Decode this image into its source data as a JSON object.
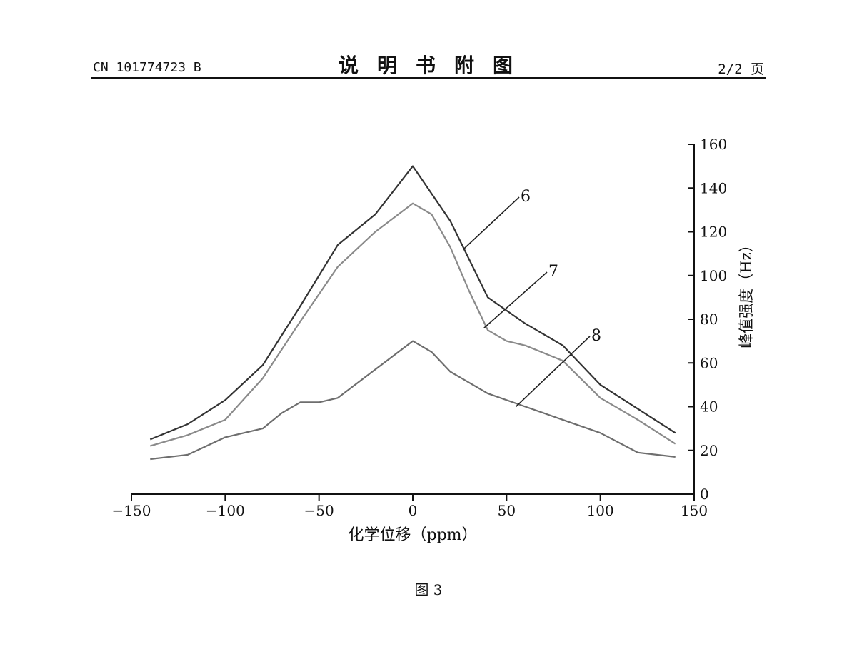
{
  "header": {
    "patent_number": "CN 101774723 B",
    "section_title": "说明书附图",
    "page_indicator": "2/2 页"
  },
  "caption": "图 3",
  "chart_data": {
    "type": "line",
    "title": "",
    "xlabel": "化学位移（ppm）",
    "ylabel": "峰值强度（Hz）",
    "xlim": [
      -150,
      150
    ],
    "ylim": [
      0,
      160
    ],
    "xticks": [
      -150,
      -100,
      -50,
      0,
      50,
      100,
      150
    ],
    "yticks": [
      0,
      20,
      40,
      60,
      80,
      100,
      120,
      140,
      160
    ],
    "xtick_labels": [
      "−150",
      "−100",
      "−50",
      "0",
      "50",
      "100",
      "150"
    ],
    "ytick_labels": [
      "0",
      "20",
      "40",
      "60",
      "80",
      "100",
      "120",
      "140",
      "160"
    ],
    "y_axis_side": "right",
    "grid": false,
    "series": [
      {
        "name": "6",
        "color": "#333333",
        "x": [
          -140,
          -120,
          -100,
          -80,
          -60,
          -40,
          -20,
          0,
          20,
          40,
          60,
          80,
          100,
          120,
          140
        ],
        "y": [
          25,
          32,
          43,
          59,
          86,
          114,
          128,
          150,
          125,
          90,
          78,
          68,
          50,
          39,
          28
        ]
      },
      {
        "name": "7",
        "color": "#8a8a8a",
        "x": [
          -140,
          -120,
          -100,
          -80,
          -60,
          -40,
          -20,
          0,
          10,
          20,
          30,
          40,
          50,
          60,
          80,
          100,
          120,
          140
        ],
        "y": [
          22,
          27,
          34,
          53,
          79,
          104,
          120,
          133,
          128,
          113,
          93,
          75,
          70,
          68,
          61,
          44,
          34,
          23
        ],
        "label_anchor": [
          38,
          76
        ]
      },
      {
        "name": "8",
        "color": "#6e6e6e",
        "x": [
          -140,
          -120,
          -100,
          -80,
          -70,
          -60,
          -50,
          -40,
          -20,
          0,
          10,
          20,
          40,
          60,
          80,
          100,
          120,
          140
        ],
        "y": [
          16,
          18,
          26,
          30,
          37,
          42,
          42,
          44,
          57,
          70,
          65,
          56,
          46,
          40,
          34,
          28,
          19,
          17
        ],
        "label_anchor": [
          55,
          40
        ]
      }
    ],
    "series_label_leaders": [
      {
        "name": "6",
        "from": [
          27,
          112
        ]
      },
      {
        "name": "7",
        "from": [
          38,
          76
        ]
      },
      {
        "name": "8",
        "from": [
          55,
          40
        ]
      }
    ]
  }
}
